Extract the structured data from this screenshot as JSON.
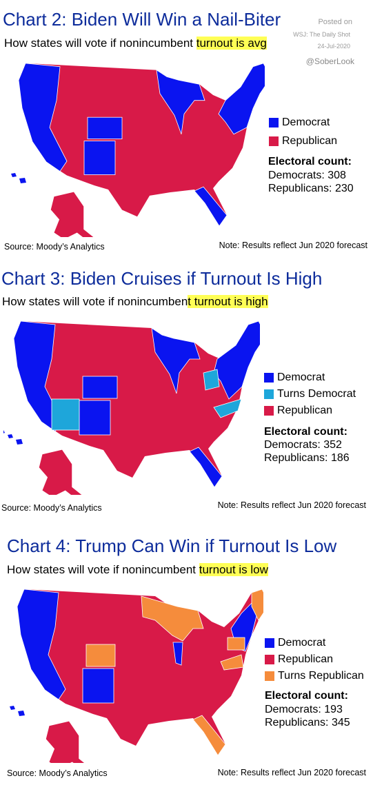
{
  "watermark": [
    "Posted on",
    "WSJ: The Daily Shot",
    "24-Jul-2020",
    "@SoberLook"
  ],
  "panels": [
    {
      "title": "Chart 2: Biden Will Win a Nail-Biter",
      "subtitle": [
        "How states will vote if nonincumbent ",
        "turnout is avg"
      ],
      "legend": [
        {
          "label": "Democrat",
          "color": "#0a14f0"
        },
        {
          "label": "Republican",
          "color": "#d81a48"
        }
      ],
      "electoral": {
        "heading": "Electoral count:",
        "lines": [
          "Democrats: 308",
          "Republicans: 230"
        ]
      },
      "source": "Source: Moody’s Analytics",
      "note": "Note: Results reflect Jun 2020 forecast"
    },
    {
      "title": "Chart 3: Biden Cruises if Turnout Is High",
      "subtitle": [
        "How states will vote if nonincumben",
        "t turnout is high "
      ],
      "legend": [
        {
          "label": "Democrat",
          "color": "#0a14f0"
        },
        {
          "label": "Turns Democrat",
          "color": "#1ea6da"
        },
        {
          "label": "Republican",
          "color": "#d81a48"
        }
      ],
      "electoral": {
        "heading": "Electoral count:",
        "lines": [
          "Democrats: 352",
          "Republicans: 186"
        ]
      },
      "source": "Source: Moody’s Analytics",
      "note": "Note: Results reflect Jun 2020 forecast"
    },
    {
      "title": "Chart 4: Trump Can Win if Turnout Is Low",
      "subtitle": [
        "How states will vote if nonincumbent ",
        "turnout is low"
      ],
      "legend": [
        {
          "label": "Democrat",
          "color": "#0a14f0"
        },
        {
          "label": "Republican",
          "color": "#d81a48"
        },
        {
          "label": "Turns Republican",
          "color": "#f58c3c"
        }
      ],
      "electoral": {
        "heading": "Electoral count:",
        "lines": [
          "Democrats: 193",
          "Republicans: 345"
        ]
      },
      "source": "Source: Moody’s Analytics",
      "note": "Note: Results reflect Jun 2020 forecast"
    }
  ]
}
